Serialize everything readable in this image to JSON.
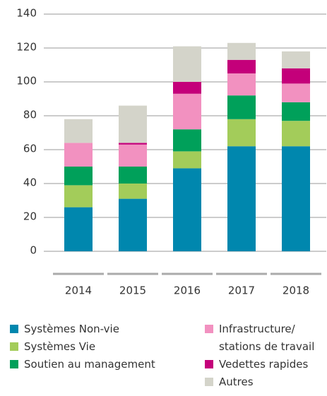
{
  "chart_data": {
    "type": "stacked-bar",
    "categories": [
      "2014",
      "2015",
      "2016",
      "2017",
      "2018"
    ],
    "series": [
      {
        "name": "Systèmes Non-vie",
        "color": "#0087ae",
        "values": [
          26,
          31,
          49,
          62,
          62
        ]
      },
      {
        "name": "Systèmes Vie",
        "color": "#a3cc5a",
        "values": [
          13,
          9,
          10,
          16,
          15
        ]
      },
      {
        "name": "Soutien au management",
        "color": "#00a05a",
        "values": [
          11,
          10,
          13,
          14,
          11
        ]
      },
      {
        "name": "Infrastructure/ stations de travail",
        "color": "#f291c0",
        "values": [
          14,
          13,
          21,
          13,
          11
        ]
      },
      {
        "name": "Vedettes rapides",
        "color": "#c4007a",
        "values": [
          0,
          1,
          7,
          8,
          9
        ]
      },
      {
        "name": "Autres",
        "color": "#d4d4ca",
        "values": [
          14,
          22,
          21,
          10,
          10
        ]
      }
    ],
    "ylim": [
      0,
      140
    ],
    "yticks": [
      0,
      20,
      40,
      60,
      80,
      100,
      120,
      140
    ],
    "grid": true
  }
}
